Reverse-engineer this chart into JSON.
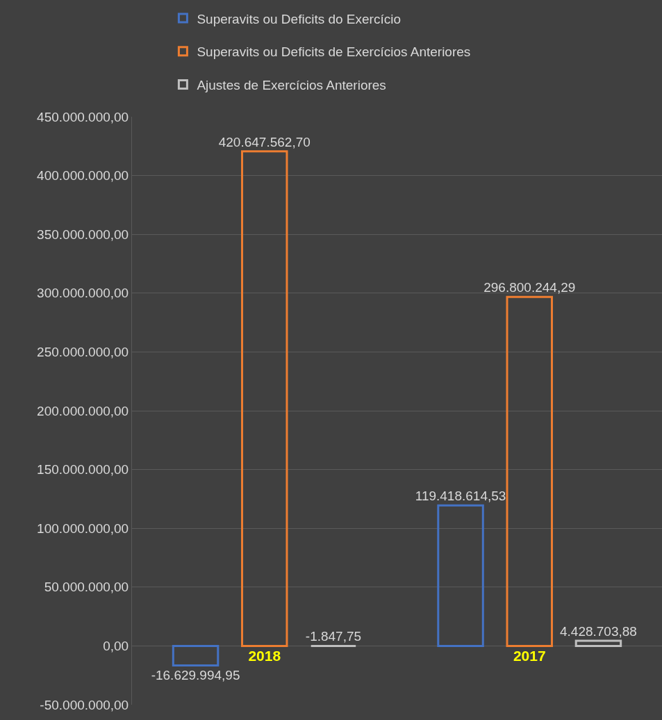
{
  "chart_data": {
    "type": "bar",
    "categories": [
      "2018",
      "2017"
    ],
    "series": [
      {
        "name": "Superavits ou Deficits do Exercício",
        "color": "#4472c4",
        "values": [
          -16629994.95,
          119418614.53
        ],
        "value_labels": [
          "-16.629.994,95",
          "119.418.614,53"
        ]
      },
      {
        "name": "Superavits ou Deficits de Exercícios Anteriores",
        "color": "#ed7d31",
        "values": [
          420647562.7,
          296800244.29
        ],
        "value_labels": [
          "420.647.562,70",
          "296.800.244,29"
        ]
      },
      {
        "name": "Ajustes de Exercícios Anteriores",
        "color": "#bfbfbf",
        "values": [
          -1847.75,
          4428703.88
        ],
        "value_labels": [
          "-1.847,75",
          "4.428.703,88"
        ]
      }
    ],
    "ylim": [
      -50000000,
      450000000
    ],
    "yticks": [
      {
        "value": -50000000,
        "label": "-50.000.000,00"
      },
      {
        "value": 0,
        "label": "0,00"
      },
      {
        "value": 50000000,
        "label": "50.000.000,00"
      },
      {
        "value": 100000000,
        "label": "100.000.000,00"
      },
      {
        "value": 150000000,
        "label": "150.000.000,00"
      },
      {
        "value": 200000000,
        "label": "200.000.000,00"
      },
      {
        "value": 250000000,
        "label": "250.000.000,00"
      },
      {
        "value": 300000000,
        "label": "300.000.000,00"
      },
      {
        "value": 350000000,
        "label": "350.000.000,00"
      },
      {
        "value": 400000000,
        "label": "400.000.000,00"
      },
      {
        "value": 450000000,
        "label": "450.000.000,00"
      }
    ],
    "grid": "y",
    "legend": "top"
  }
}
